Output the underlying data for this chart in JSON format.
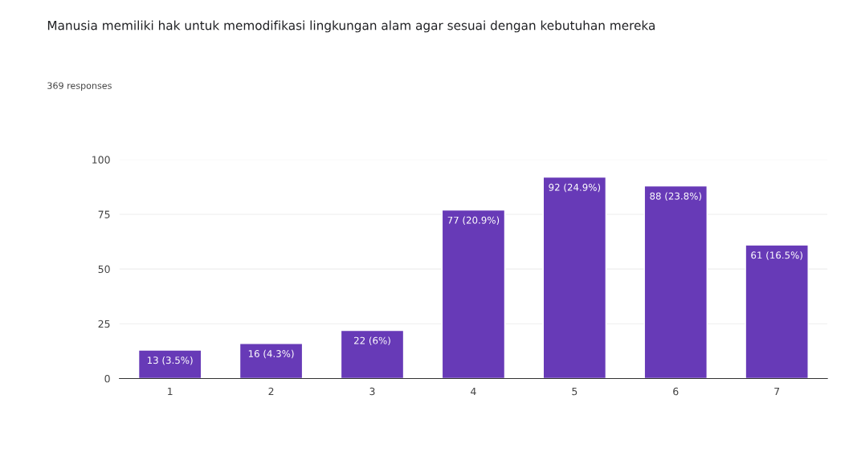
{
  "chart_data": {
    "type": "bar",
    "title": "Manusia memiliki hak untuk memodifikasi lingkungan alam agar sesuai dengan kebutuhan mereka",
    "subtitle": "369 responses",
    "categories": [
      "1",
      "2",
      "3",
      "4",
      "5",
      "6",
      "7"
    ],
    "values": [
      13,
      16,
      22,
      77,
      92,
      88,
      61
    ],
    "value_labels": [
      "13 (3.5%)",
      "16 (4.3%)",
      "22 (6%)",
      "77 (20.9%)",
      "92 (24.9%)",
      "88 (23.8%)",
      "61 (16.5%)"
    ],
    "color": "#673ab7",
    "ylim": [
      0,
      100
    ],
    "yticks": [
      0,
      25,
      50,
      75,
      100
    ],
    "grid": "y"
  }
}
